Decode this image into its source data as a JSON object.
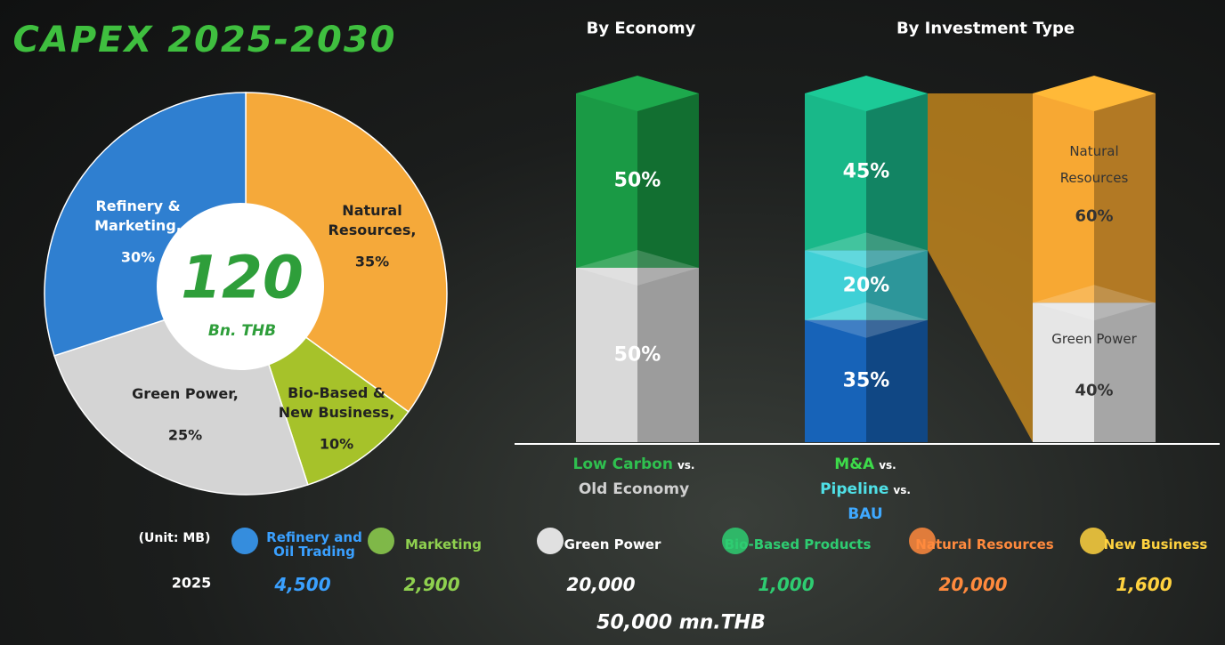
{
  "title": "CAPEX 2025-2030",
  "chart_data": [
    {
      "type": "pie",
      "categories": [
        "Natural Resources,",
        "Bio-Based & New Business,",
        "Green Power,",
        "Refinery & Marketing,"
      ],
      "values": [
        35,
        10,
        25,
        30
      ],
      "value_labels": [
        "35%",
        "10%",
        "25%",
        "30%"
      ],
      "colors": [
        "#f5a93a",
        "#a6c22a",
        "#d4d4d4",
        "#2f7fd0"
      ],
      "center_value": "120",
      "center_unit": "Bn. THB"
    },
    {
      "type": "bar",
      "stacked": true,
      "title": "By Economy",
      "legend_separator": "vs.",
      "series": [
        {
          "name": "Low Carbon",
          "color": "#1a9a45",
          "legend_color": "#2fbf4f",
          "values": [
            50
          ],
          "value_labels": [
            "50%"
          ]
        },
        {
          "name": "Old Economy",
          "color": "#d9d9d9",
          "legend_color": "#d0d0d0",
          "values": [
            50
          ],
          "value_labels": [
            "50%"
          ]
        }
      ]
    },
    {
      "type": "bar",
      "stacked": true,
      "title": "By Investment Type",
      "legend_separator": "vs.",
      "series": [
        {
          "name": "M&A",
          "color": "#19b889",
          "legend_color": "#3ddc4a",
          "values": [
            45
          ],
          "value_labels": [
            "45%"
          ]
        },
        {
          "name": "Pipeline",
          "color": "#3fd0d6",
          "legend_color": "#4fe0e6",
          "values": [
            20
          ],
          "value_labels": [
            "20%"
          ]
        },
        {
          "name": "BAU",
          "color": "#1763b8",
          "legend_color": "#3fa9ff",
          "values": [
            35
          ],
          "value_labels": [
            "35%"
          ]
        }
      ]
    },
    {
      "type": "bar",
      "stacked": true,
      "series": [
        {
          "name": "Natural Resources",
          "color": "#f7a833",
          "values": [
            60
          ],
          "value_labels": [
            "60%"
          ]
        },
        {
          "name": "Green Power",
          "color": "#e6e6e6",
          "values": [
            40
          ],
          "value_labels": [
            "40%"
          ]
        }
      ]
    }
  ],
  "breakdown": {
    "unit": "(Unit: MB)",
    "columns": [
      {
        "name": "Refinery and Oil Trading",
        "color": "#3aa0ff"
      },
      {
        "name": "Marketing",
        "color": "#8fd14f"
      },
      {
        "name": "Green Power",
        "color": "#ffffff"
      },
      {
        "name": "Bio-Based Products",
        "color": "#2ecc71"
      },
      {
        "name": "Natural Resources",
        "color": "#ff8a3d"
      },
      {
        "name": "New Business",
        "color": "#ffd23f"
      }
    ],
    "rows": [
      {
        "label": "2025",
        "values": [
          "4,500",
          "2,900",
          "20,000",
          "1,000",
          "20,000",
          "1,600"
        ]
      }
    ],
    "total": "50,000 mn.THB"
  }
}
